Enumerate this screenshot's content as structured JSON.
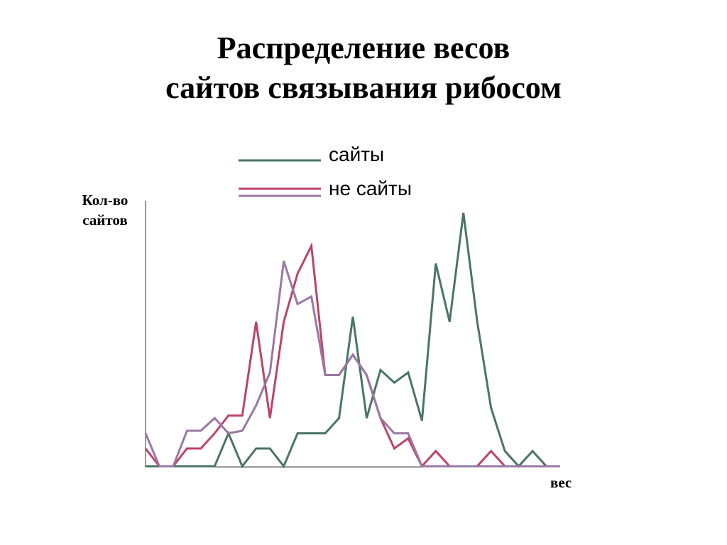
{
  "chart_data": {
    "type": "line",
    "title": "Распределение весов",
    "subtitle": "сайтов связывания рибосом",
    "ylabel": "Кол-во сайтов",
    "xlabel": "вес",
    "ylim": [
      0,
      100
    ],
    "legend_placement": "top",
    "legend": [
      {
        "label": "сайты",
        "colors": [
          "#4a7564"
        ]
      },
      {
        "label": "не сайты",
        "colors": [
          "#bc4466",
          "#9a78a4"
        ]
      }
    ],
    "x": [
      0,
      1,
      2,
      3,
      4,
      5,
      6,
      7,
      8,
      9,
      10,
      11,
      12,
      13,
      14,
      15,
      16,
      17,
      18,
      19,
      20,
      21,
      22,
      23,
      24,
      25,
      26,
      27,
      28,
      29,
      30
    ],
    "series": [
      {
        "color": "#4a7564",
        "values": [
          0,
          0,
          0,
          0,
          0,
          0,
          13,
          0,
          7,
          7,
          0,
          13,
          13,
          13,
          19,
          59,
          19,
          38,
          33,
          37,
          18,
          80,
          57,
          100,
          57,
          23,
          6,
          0,
          6,
          0,
          0
        ]
      },
      {
        "color": "#bc4466",
        "values": [
          7,
          0,
          0,
          7,
          7,
          13,
          20,
          20,
          57,
          19,
          57,
          76,
          87,
          36,
          36,
          44,
          36,
          19,
          7,
          11,
          0,
          6,
          0,
          0,
          0,
          6,
          0,
          0,
          0,
          0,
          0
        ]
      },
      {
        "color": "#9a78a4",
        "values": [
          13,
          0,
          0,
          14,
          14,
          19,
          13,
          14,
          24,
          37,
          81,
          64,
          67,
          36,
          36,
          44,
          36,
          19,
          13,
          13,
          0,
          0,
          0,
          0,
          0,
          0,
          0,
          0,
          0,
          0,
          0
        ]
      }
    ]
  }
}
